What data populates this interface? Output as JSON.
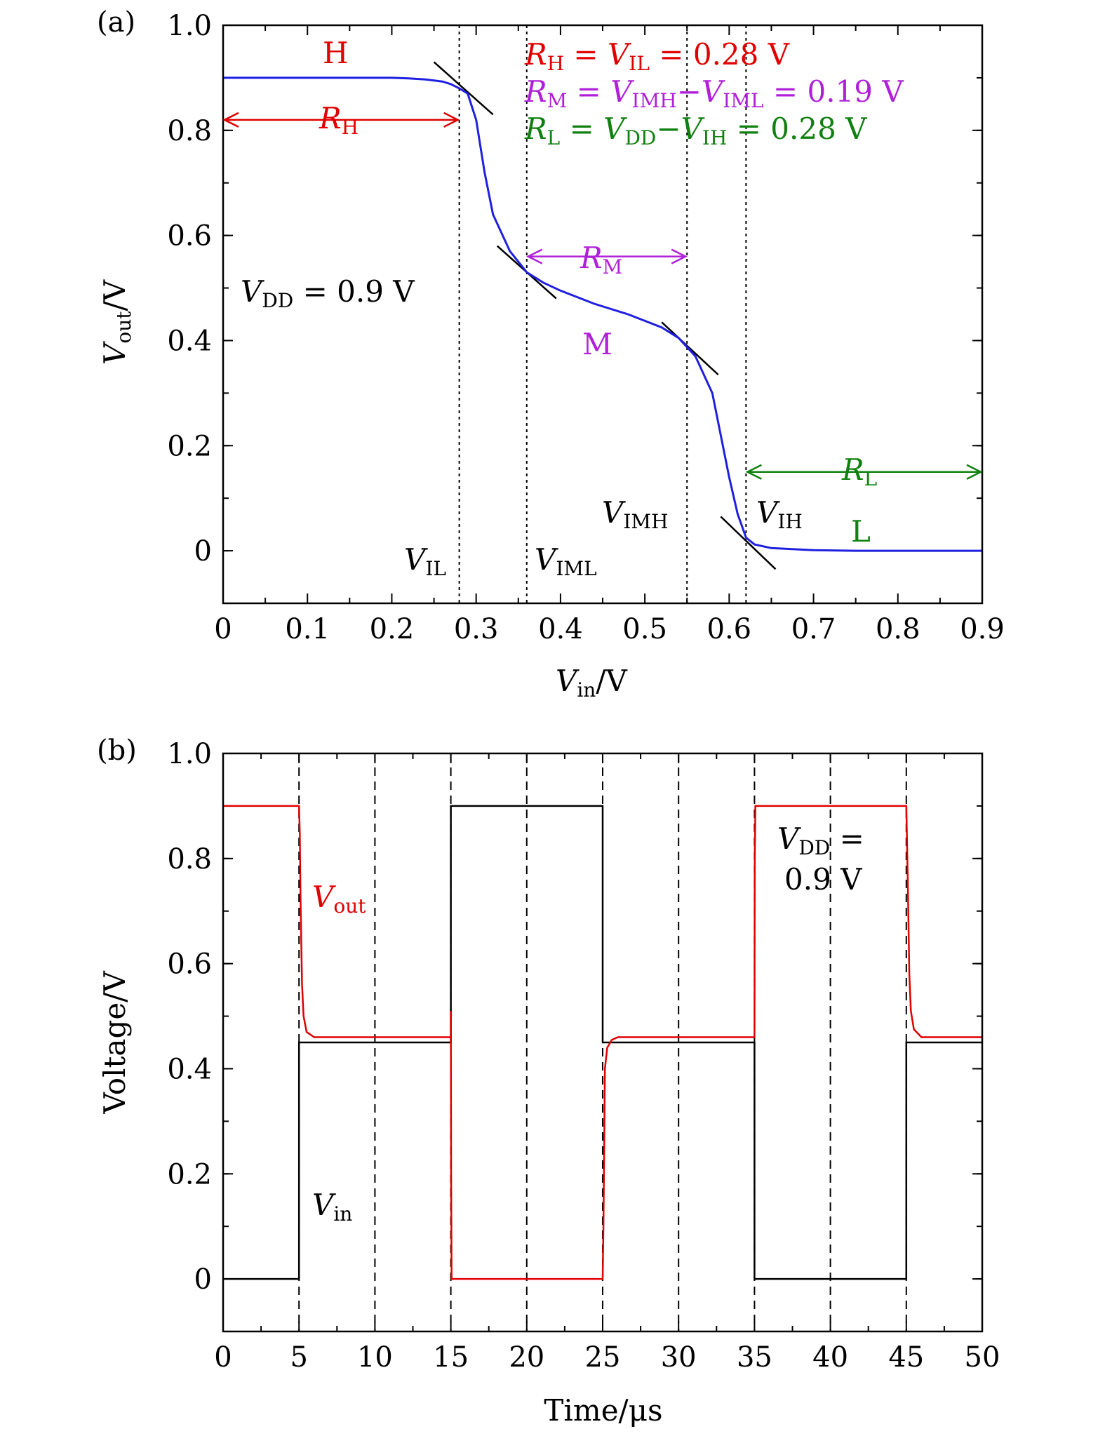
{
  "colors": {
    "vout_a": "#1f1fe0",
    "vout_b": "#e00000",
    "vin_b": "#000000",
    "h_color": "#e00000",
    "m_color": "#b020d8",
    "l_color": "#108010",
    "black": "#000000"
  },
  "chart_data": [
    {
      "type": "line",
      "panel_label": "(a)",
      "xlabel": {
        "var": "V",
        "sub": "in",
        "unit": "/V"
      },
      "ylabel": {
        "var": "V",
        "sub": "out",
        "unit": "/V"
      },
      "xlim": [
        0,
        0.9
      ],
      "ylim": [
        -0.1,
        1.0
      ],
      "xticks": [
        0,
        0.1,
        0.2,
        0.3,
        0.4,
        0.5,
        0.6,
        0.7,
        0.8,
        0.9
      ],
      "xtick_labels": [
        "0",
        "0.1",
        "0.2",
        "0.3",
        "0.4",
        "0.5",
        "0.6",
        "0.7",
        "0.8",
        "0.9"
      ],
      "yticks": [
        0,
        0.2,
        0.4,
        0.6,
        0.8,
        1.0
      ],
      "ytick_labels": [
        "0",
        "0.2",
        "0.4",
        "0.6",
        "0.8",
        "1.0"
      ],
      "series": [
        {
          "x": [
            0,
            0.05,
            0.1,
            0.15,
            0.2,
            0.22,
            0.24,
            0.26,
            0.27,
            0.28,
            0.29,
            0.3,
            0.31,
            0.32,
            0.34,
            0.36,
            0.38,
            0.4,
            0.44,
            0.48,
            0.52,
            0.54,
            0.56,
            0.58,
            0.6,
            0.61,
            0.62,
            0.63,
            0.65,
            0.7,
            0.75,
            0.8,
            0.85,
            0.9
          ],
          "y": [
            0.9,
            0.9,
            0.9,
            0.9,
            0.9,
            0.899,
            0.897,
            0.893,
            0.888,
            0.88,
            0.87,
            0.82,
            0.72,
            0.64,
            0.57,
            0.53,
            0.51,
            0.495,
            0.47,
            0.45,
            0.425,
            0.405,
            0.37,
            0.3,
            0.14,
            0.07,
            0.025,
            0.012,
            0.005,
            0.001,
            0.0,
            0.0,
            0.0,
            0.0
          ]
        }
      ],
      "vlines": [
        0.28,
        0.36,
        0.55,
        0.62
      ],
      "tangents": [
        {
          "x": [
            0.25,
            0.32
          ],
          "y": [
            0.93,
            0.83
          ]
        },
        {
          "x": [
            0.325,
            0.395
          ],
          "y": [
            0.58,
            0.48
          ]
        },
        {
          "x": [
            0.52,
            0.587
          ],
          "y": [
            0.435,
            0.335
          ]
        },
        {
          "x": [
            0.59,
            0.655
          ],
          "y": [
            0.065,
            -0.035
          ]
        }
      ],
      "arrows": [
        {
          "name": "rh",
          "x": [
            0,
            0.28
          ],
          "y": 0.82,
          "color": "h_color"
        },
        {
          "name": "rm",
          "x": [
            0.36,
            0.55
          ],
          "y": 0.56,
          "color": "m_color"
        },
        {
          "name": "rl",
          "x": [
            0.62,
            0.9
          ],
          "y": 0.15,
          "color": "l_color"
        }
      ],
      "labels": {
        "h": "H",
        "m": "M",
        "l": "L",
        "rh": {
          "var": "R",
          "sub": "H"
        },
        "rm": {
          "var": "R",
          "sub": "M"
        },
        "rl": {
          "var": "R",
          "sub": "L"
        },
        "vil": {
          "var": "V",
          "sub": "IL"
        },
        "viml": {
          "var": "V",
          "sub": "IML"
        },
        "vimh": {
          "var": "V",
          "sub": "IMH"
        },
        "vih": {
          "var": "V",
          "sub": "IH"
        },
        "vdd": {
          "var": "V",
          "sub": "DD",
          "rest": " = 0.9 V"
        },
        "eq1": {
          "v1": "R",
          "s1": "H",
          "mid": " = ",
          "v2": "V",
          "s2": "IL",
          "rest": " = 0.28 V"
        },
        "eq2": {
          "v1": "R",
          "s1": "M",
          "mid": " = ",
          "v2": "V",
          "s2": "IMH",
          "mid2": "−",
          "v3": "V",
          "s3": "IML",
          "rest": " = 0.19 V"
        },
        "eq3": {
          "v1": "R",
          "s1": "L",
          "mid": " = ",
          "v2": "V",
          "s2": "DD",
          "mid2": "−",
          "v3": "V",
          "s3": "IH",
          "rest": " = 0.28 V"
        }
      }
    },
    {
      "type": "line",
      "panel_label": "(b)",
      "xlabel": {
        "text": "Time/μs"
      },
      "ylabel": {
        "text": "Voltage/V"
      },
      "xlim": [
        0,
        50
      ],
      "ylim": [
        -0.1,
        1.0
      ],
      "xticks": [
        0,
        5,
        10,
        15,
        20,
        25,
        30,
        35,
        40,
        45,
        50
      ],
      "xtick_labels": [
        "0",
        "5",
        "10",
        "15",
        "20",
        "25",
        "30",
        "35",
        "40",
        "45",
        "50"
      ],
      "yticks": [
        0,
        0.2,
        0.4,
        0.6,
        0.8,
        1.0
      ],
      "ytick_labels": [
        "0",
        "0.2",
        "0.4",
        "0.6",
        "0.8",
        "1.0"
      ],
      "series": [
        {
          "name_var": "V",
          "name_sub": "out",
          "x": [
            0,
            5.0,
            5.05,
            5.1,
            5.2,
            5.3,
            5.5,
            6.0,
            15.0,
            15.0,
            15.02,
            15.05,
            25.0,
            25.05,
            25.15,
            25.3,
            25.6,
            26.0,
            35.0,
            35.02,
            35.06,
            35.3,
            45.0,
            45.1,
            45.2,
            45.3,
            45.5,
            46.0,
            50.0
          ],
          "y": [
            0.9,
            0.9,
            0.85,
            0.72,
            0.56,
            0.5,
            0.47,
            0.46,
            0.46,
            0.51,
            0.2,
            0.0,
            0.0,
            0.1,
            0.4,
            0.44,
            0.455,
            0.46,
            0.46,
            0.8,
            0.9,
            0.9,
            0.9,
            0.75,
            0.58,
            0.51,
            0.475,
            0.46,
            0.46
          ]
        },
        {
          "name_var": "V",
          "name_sub": "in",
          "x": [
            0,
            5.0,
            5.0,
            15.0,
            15.0,
            25.0,
            25.0,
            35.0,
            35.0,
            45.0,
            45.0,
            50.0
          ],
          "y": [
            0.0,
            0.0,
            0.45,
            0.45,
            0.9,
            0.9,
            0.45,
            0.45,
            0.0,
            0.0,
            0.45,
            0.45
          ]
        }
      ],
      "vlines": [
        5,
        10,
        15,
        20,
        25,
        30,
        35,
        40,
        45
      ],
      "labels": {
        "vout": {
          "var": "V",
          "sub": "out"
        },
        "vin": {
          "var": "V",
          "sub": "in"
        },
        "vdd_line1": {
          "var": "V",
          "sub": "DD",
          "rest": " ="
        },
        "vdd_line2": "0.9 V"
      }
    }
  ]
}
